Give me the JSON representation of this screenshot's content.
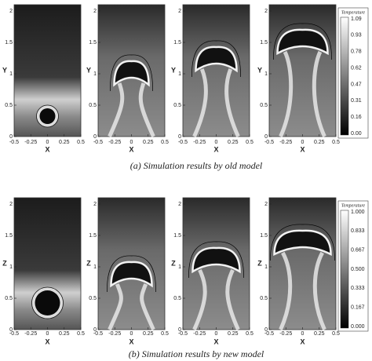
{
  "rows": [
    {
      "y_label": "Y",
      "x_label": "X",
      "y_ticks": [
        "0",
        "0.5",
        "1",
        "1.5",
        "2"
      ],
      "x_ticks": [
        "-0.5",
        "-0.25",
        "0",
        "0.25",
        "0.5"
      ],
      "colorbar": {
        "title": "Temperature",
        "ticks": [
          "1.09",
          "0.93",
          "0.78",
          "0.62",
          "0.47",
          "0.31",
          "0.16",
          "0.00"
        ]
      },
      "caption": "(a)  Simulation results by old model"
    },
    {
      "y_label": "Z",
      "x_label": "X",
      "y_ticks": [
        "0",
        "0.5",
        "1",
        "1.5",
        "2"
      ],
      "x_ticks": [
        "-0.5",
        "-0.25",
        "0",
        "0.25",
        "0.5"
      ],
      "colorbar": {
        "title": "Temperature",
        "ticks": [
          "1.000",
          "0.833",
          "0.667",
          "0.500",
          "0.333",
          "0.167",
          "0.000"
        ]
      },
      "caption": "(b) Simulation results by new model"
    }
  ]
}
